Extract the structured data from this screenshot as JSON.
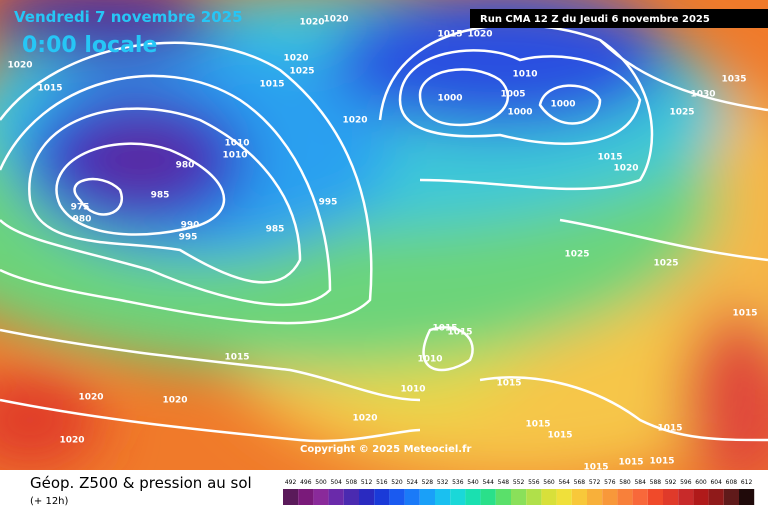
{
  "header": {
    "title": "Vendredi 7 novembre 2025",
    "subtitle": "0:00 locale",
    "run": "Run CMA 12 Z du Jeudi 6 novembre 2025"
  },
  "copyright": "Copyright © 2025 Meteociel.fr",
  "footer": {
    "title": "Géop. Z500 & pression au sol",
    "lead": "(+ 12h)"
  },
  "isobar_labels": [
    "1020",
    "1015",
    "980",
    "985",
    "975",
    "980",
    "990",
    "995",
    "985",
    "995",
    "1010",
    "1010",
    "1015",
    "1020",
    "1025",
    "1020",
    "1015",
    "1020",
    "1000",
    "1005",
    "1010",
    "1000",
    "1000",
    "1015",
    "1020",
    "1035",
    "1030",
    "1025",
    "1025",
    "1025",
    "1015",
    "1015",
    "1015",
    "1010",
    "1010",
    "1015",
    "1015",
    "1020",
    "1020",
    "1020",
    "1020",
    "1015",
    "1015",
    "1015",
    "1015",
    "1015",
    "1015",
    "1020",
    "1020"
  ],
  "scale": {
    "ticks": [
      492,
      496,
      500,
      504,
      508,
      512,
      516,
      520,
      524,
      528,
      532,
      536,
      540,
      544,
      548,
      552,
      556,
      560,
      564,
      568,
      572,
      576,
      580,
      584,
      588,
      592,
      596,
      600,
      604,
      608,
      612
    ]
  }
}
